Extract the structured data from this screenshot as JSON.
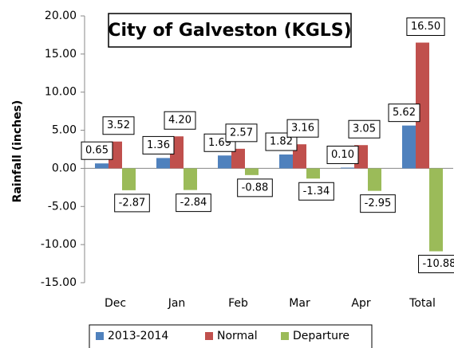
{
  "chart_data": {
    "type": "bar",
    "title": "City of Galveston (KGLS)",
    "y_label": "Rainfall (inches)",
    "categories": [
      "Dec",
      "Jan",
      "Feb",
      "Mar",
      "Apr",
      "Total"
    ],
    "series": [
      {
        "name": "2013-2014",
        "color": "#4f81bd",
        "values": [
          0.65,
          1.36,
          1.69,
          1.82,
          0.1,
          5.62
        ],
        "value_labels": [
          "0.65",
          "1.36",
          "1.69",
          "1.82",
          "0.10",
          "5.62"
        ]
      },
      {
        "name": "Normal",
        "color": "#c0504d",
        "values": [
          3.52,
          4.2,
          2.57,
          3.16,
          3.05,
          16.5
        ],
        "value_labels": [
          "3.52",
          "4.20",
          "2.57",
          "3.16",
          "3.05",
          "16.50"
        ]
      },
      {
        "name": "Departure",
        "color": "#9bbb59",
        "values": [
          -2.87,
          -2.84,
          -0.88,
          -1.34,
          -2.95,
          -10.88
        ],
        "value_labels": [
          "-2.87",
          "-2.84",
          "-0.88",
          "-1.34",
          "-2.95",
          "-10.88"
        ]
      }
    ],
    "ylim": [
      -15,
      20
    ],
    "yticks": [
      {
        "value": -15,
        "label": "-15.00"
      },
      {
        "value": -10,
        "label": "-10.00"
      },
      {
        "value": -5,
        "label": "-5.00"
      },
      {
        "value": 0,
        "label": "0.00"
      },
      {
        "value": 5,
        "label": "5.00"
      },
      {
        "value": 10,
        "label": "10.00"
      },
      {
        "value": 15,
        "label": "15.00"
      },
      {
        "value": 20,
        "label": "20.00"
      }
    ],
    "legend": "bottom"
  }
}
